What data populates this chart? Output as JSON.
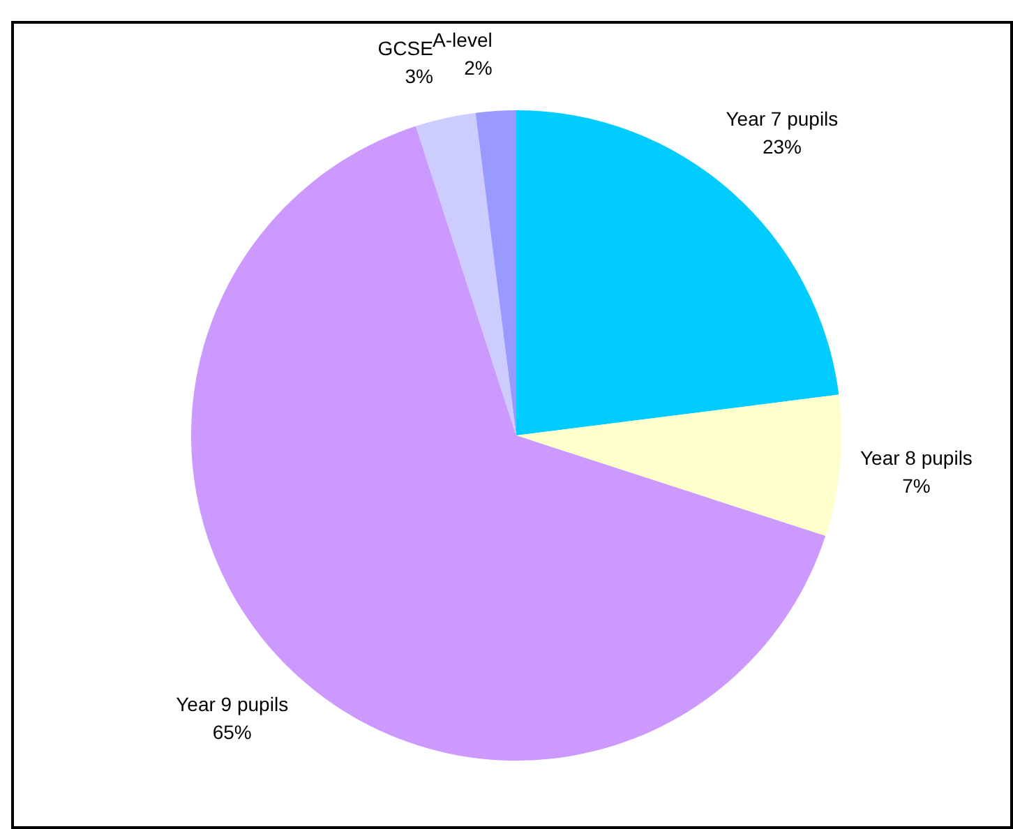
{
  "chart_data": {
    "type": "pie",
    "categories": [
      "Year 7 pupils",
      "Year 8 pupils",
      "Year 9 pupils",
      "GCSE",
      "A-level"
    ],
    "values": [
      23,
      7,
      65,
      3,
      2
    ],
    "value_labels": [
      "23%",
      "7%",
      "65%",
      "3%",
      "2%"
    ],
    "colors": [
      "#00ccff",
      "#ffffcc",
      "#cc99ff",
      "#ccccff",
      "#9999ff"
    ]
  }
}
